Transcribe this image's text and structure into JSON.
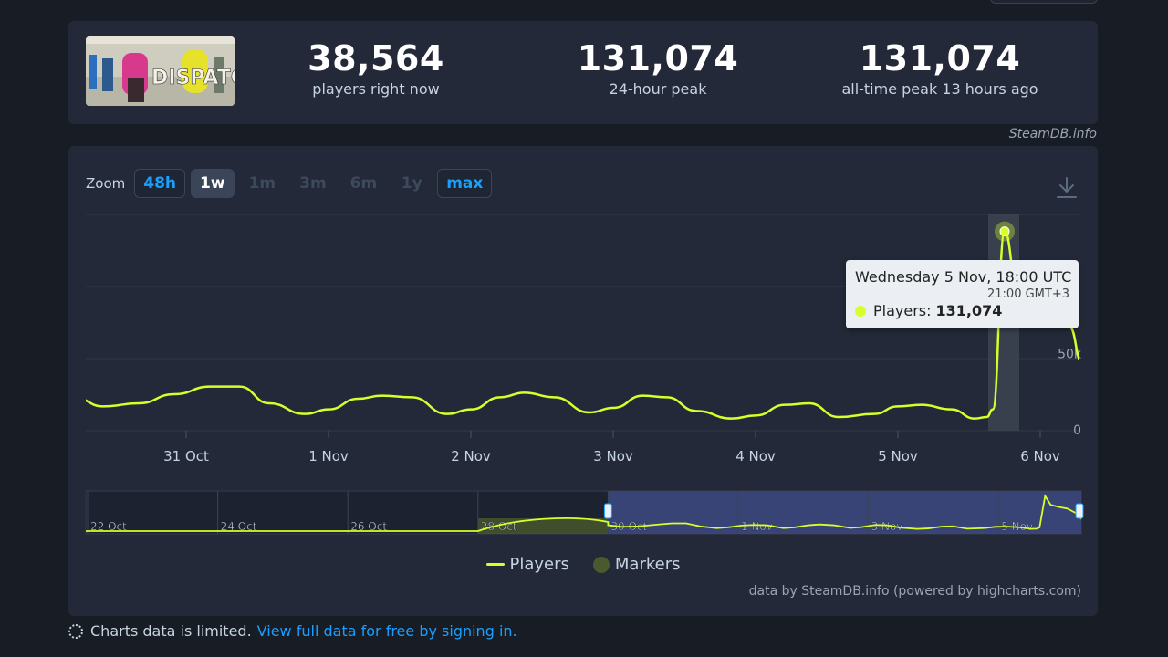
{
  "stats": [
    {
      "value": "38,564",
      "label": "players right now"
    },
    {
      "value": "131,074",
      "label": "24-hour peak"
    },
    {
      "value": "131,074",
      "label": "all-time peak 13 hours ago"
    }
  ],
  "game_thumb": {
    "logo_text": "DISPATCH"
  },
  "credit_top": "SteamDB.info",
  "zoom": {
    "label": "Zoom",
    "options": [
      {
        "label": "48h",
        "state": "enabled"
      },
      {
        "label": "1w",
        "state": "active"
      },
      {
        "label": "1m",
        "state": "disabled"
      },
      {
        "label": "3m",
        "state": "disabled"
      },
      {
        "label": "6m",
        "state": "disabled"
      },
      {
        "label": "1y",
        "state": "disabled"
      },
      {
        "label": "max",
        "state": "enabled"
      }
    ]
  },
  "tooltip": {
    "title": "Wednesday 5 Nov, 18:00 UTC",
    "subtitle": "21:00 GMT+3",
    "series_label": "Players:",
    "value": "131,074"
  },
  "legend": {
    "players": "Players",
    "markers": "Markers"
  },
  "credit_bottom": "data by SteamDB.info (powered by highcharts.com)",
  "footer": {
    "text": "Charts data is limited.",
    "link": "View full data for free by signing in."
  },
  "colors": {
    "series": "#d8ff2b",
    "background": "#181c25",
    "card": "#232938",
    "accent": "#1a9fff",
    "navigator_window": "#3d4a82"
  },
  "chart_data": [
    {
      "type": "line",
      "series": [
        {
          "name": "Players"
        }
      ],
      "x_ticks": [
        "31 Oct",
        "1 Nov",
        "2 Nov",
        "3 Nov",
        "4 Nov",
        "5 Nov",
        "6 Nov"
      ],
      "y_ticks": [
        "0",
        "50k"
      ],
      "ylim": [
        0,
        150000
      ],
      "x": [
        "30 Oct 05:00",
        "30 Oct 10:00",
        "30 Oct 16:00",
        "30 Oct 22:00",
        "31 Oct 04:00",
        "31 Oct 09:00",
        "31 Oct 14:00",
        "31 Oct 20:00",
        "1 Nov 00:00",
        "1 Nov 05:00",
        "1 Nov 09:00",
        "1 Nov 14:00",
        "1 Nov 20:00",
        "2 Nov 00:00",
        "2 Nov 05:00",
        "2 Nov 09:00",
        "2 Nov 14:00",
        "2 Nov 20:00",
        "3 Nov 00:00",
        "3 Nov 05:00",
        "3 Nov 09:00",
        "3 Nov 14:00",
        "3 Nov 20:00",
        "4 Nov 00:00",
        "4 Nov 05:00",
        "4 Nov 09:00",
        "4 Nov 14:00",
        "4 Nov 20:00",
        "5 Nov 00:00",
        "5 Nov 04:00",
        "5 Nov 09:00",
        "5 Nov 13:00",
        "5 Nov 15:00",
        "5 Nov 16:00",
        "5 Nov 18:00",
        "5 Nov 20:00",
        "5 Nov 23:00",
        "6 Nov 02:00",
        "6 Nov 05:00",
        "6 Nov 07:00"
      ],
      "values": [
        22000,
        16000,
        18000,
        24000,
        29000,
        29000,
        18000,
        11000,
        14000,
        21000,
        23000,
        22000,
        11000,
        14000,
        22000,
        25000,
        22000,
        12000,
        15000,
        23000,
        22000,
        13000,
        8000,
        10000,
        17000,
        18000,
        9000,
        11000,
        16000,
        17000,
        14000,
        8000,
        9000,
        14000,
        131074,
        98000,
        90000,
        84000,
        68000,
        45000
      ],
      "highlight": {
        "x": "5 Nov 18:00",
        "y": 131074
      }
    },
    {
      "type": "area",
      "series": [
        {
          "name": "Players"
        }
      ],
      "x_ticks": [
        "22 Oct",
        "24 Oct",
        "26 Oct",
        "28 Oct",
        "30 Oct",
        "1 Nov",
        "3 Nov",
        "5 Nov"
      ],
      "selected_range": [
        "30 Oct",
        "6 Nov"
      ]
    }
  ]
}
